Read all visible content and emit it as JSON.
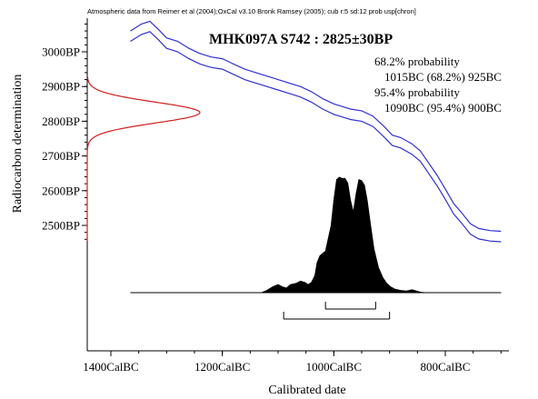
{
  "header_note": "Atmospheric data from Reimer et al (2004);OxCal v3.10 Bronk Ramsey (2005); cub r:5 sd:12 prob usp[chron]",
  "chart_data": {
    "type": "line",
    "title": "MHK097A S742 : 2825±30BP",
    "xlabel": "Calibrated date",
    "ylabel": "Radiocarbon determination",
    "x_axis": {
      "range_BC": [
        1450,
        680
      ],
      "reversed": true,
      "ticks": [
        {
          "value_BC": 1400,
          "label": "1400CalBC"
        },
        {
          "value_BC": 1200,
          "label": "1200CalBC"
        },
        {
          "value_BC": 1000,
          "label": "1000CalBC"
        },
        {
          "value_BC": 800,
          "label": "800CalBC"
        }
      ],
      "minor_ticks_BC": [
        1450,
        1400,
        1350,
        1300,
        1250,
        1200,
        1150,
        1100,
        1050,
        1000,
        950,
        900,
        850,
        800,
        750,
        700
      ]
    },
    "y_axis": {
      "unit": "BP",
      "ticks": [
        {
          "value_BP": 3000,
          "label": "3000BP"
        },
        {
          "value_BP": 2900,
          "label": "2900BP"
        },
        {
          "value_BP": 2800,
          "label": "2800BP"
        },
        {
          "value_BP": 2700,
          "label": "2700BP"
        },
        {
          "value_BP": 2600,
          "label": "2600BP"
        },
        {
          "value_BP": 2500,
          "label": "2500BP"
        }
      ],
      "minor_tick_step_BP": 20,
      "range_BP": [
        2450,
        3080
      ]
    },
    "annotations": [
      "68.2% probability",
      "1015BC (68.2%) 925BC",
      "95.4% probability",
      "1090BC (95.4%) 900BC"
    ],
    "calibration_curve": {
      "color": "#3030d0",
      "band_sigma_BP": 15,
      "points": [
        [
          1365,
          3045
        ],
        [
          1345,
          3065
        ],
        [
          1330,
          3073
        ],
        [
          1315,
          3050
        ],
        [
          1300,
          3025
        ],
        [
          1280,
          3015
        ],
        [
          1260,
          2995
        ],
        [
          1240,
          2980
        ],
        [
          1220,
          2970
        ],
        [
          1200,
          2965
        ],
        [
          1180,
          2950
        ],
        [
          1160,
          2935
        ],
        [
          1140,
          2925
        ],
        [
          1120,
          2915
        ],
        [
          1100,
          2905
        ],
        [
          1080,
          2895
        ],
        [
          1060,
          2885
        ],
        [
          1040,
          2870
        ],
        [
          1020,
          2850
        ],
        [
          1000,
          2835
        ],
        [
          990,
          2830
        ],
        [
          970,
          2820
        ],
        [
          950,
          2815
        ],
        [
          930,
          2800
        ],
        [
          910,
          2770
        ],
        [
          895,
          2745
        ],
        [
          880,
          2738
        ],
        [
          860,
          2720
        ],
        [
          845,
          2700
        ],
        [
          830,
          2665
        ],
        [
          815,
          2630
        ],
        [
          800,
          2590
        ],
        [
          785,
          2548
        ],
        [
          770,
          2520
        ],
        [
          755,
          2490
        ],
        [
          740,
          2476
        ],
        [
          720,
          2470
        ],
        [
          700,
          2468
        ]
      ]
    },
    "radiocarbon_distribution": {
      "color": "#d02020",
      "mean_BP": 2825,
      "sd_BP": 30,
      "display_range_BP": [
        2455,
        2930
      ]
    },
    "calibrated_distribution": {
      "color": "#000000",
      "baseline_range_BC": [
        1365,
        700
      ],
      "points": [
        [
          1365,
          0
        ],
        [
          1130,
          0
        ],
        [
          1120,
          0.02
        ],
        [
          1110,
          0.05
        ],
        [
          1100,
          0.07
        ],
        [
          1092,
          0.05
        ],
        [
          1085,
          0.04
        ],
        [
          1078,
          0.07
        ],
        [
          1068,
          0.08
        ],
        [
          1060,
          0.1
        ],
        [
          1052,
          0.09
        ],
        [
          1046,
          0.07
        ],
        [
          1040,
          0.09
        ],
        [
          1034,
          0.15
        ],
        [
          1030,
          0.26
        ],
        [
          1025,
          0.32
        ],
        [
          1020,
          0.34
        ],
        [
          1015,
          0.36
        ],
        [
          1010,
          0.47
        ],
        [
          1005,
          0.58
        ],
        [
          1000,
          0.8
        ],
        [
          995,
          0.98
        ],
        [
          990,
          1.0
        ],
        [
          985,
          0.99
        ],
        [
          980,
          0.99
        ],
        [
          975,
          0.95
        ],
        [
          970,
          0.8
        ],
        [
          965,
          0.7
        ],
        [
          960,
          0.86
        ],
        [
          955,
          0.98
        ],
        [
          950,
          0.97
        ],
        [
          945,
          0.93
        ],
        [
          940,
          0.8
        ],
        [
          935,
          0.62
        ],
        [
          928,
          0.38
        ],
        [
          920,
          0.22
        ],
        [
          912,
          0.13
        ],
        [
          905,
          0.08
        ],
        [
          898,
          0.05
        ],
        [
          890,
          0.03
        ],
        [
          880,
          0.02
        ],
        [
          870,
          0.015
        ],
        [
          860,
          0.025
        ],
        [
          855,
          0.02
        ],
        [
          845,
          0.005
        ],
        [
          835,
          0
        ],
        [
          700,
          0
        ]
      ]
    },
    "ranges": [
      {
        "sigma": "68.2%",
        "from_BC": 1015,
        "to_BC": 925
      },
      {
        "sigma": "95.4%",
        "from_BC": 1090,
        "to_BC": 900
      }
    ]
  }
}
